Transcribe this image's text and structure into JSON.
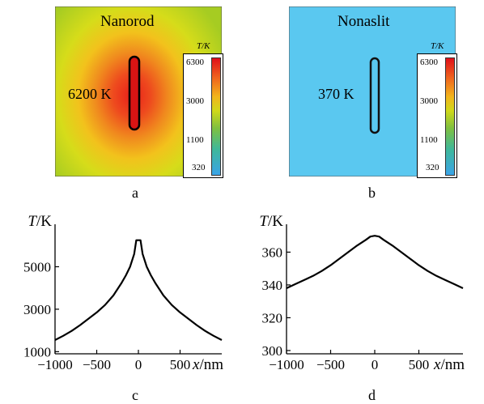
{
  "panel_a": {
    "title": "Nanorod",
    "peak_label": "6200 K",
    "legend_unit": "T/K",
    "legend_ticks": [
      "6300",
      "3000",
      "1100",
      "320"
    ],
    "sub_label": "a",
    "colors": {
      "background": "#b8d81a",
      "hot": "#e01818",
      "orange": "#f08a1e"
    }
  },
  "panel_b": {
    "title": "Nonaslit",
    "peak_label": "370 K",
    "legend_unit": "T/K",
    "legend_ticks": [
      "6300",
      "3000",
      "1100",
      "320"
    ],
    "sub_label": "b",
    "colors": {
      "background": "#5ac8f0"
    }
  },
  "chart_data": [
    {
      "type": "line",
      "panel": "c",
      "ylabel": "T/K",
      "xlabel": "x/nm",
      "xlim": [
        -1000,
        1000
      ],
      "ylim": [
        900,
        7000
      ],
      "xticks": [
        "−1000",
        "−500",
        "0",
        "500"
      ],
      "yticks": [
        "1000",
        "3000",
        "5000"
      ],
      "ytick_values": [
        1000,
        3000,
        5000
      ],
      "xtick_values": [
        -1000,
        -500,
        0,
        500
      ],
      "x": [
        -1000,
        -900,
        -800,
        -700,
        -600,
        -500,
        -400,
        -300,
        -200,
        -150,
        -100,
        -50,
        -25,
        0,
        25,
        50,
        100,
        150,
        200,
        300,
        400,
        500,
        600,
        700,
        800,
        900,
        1000
      ],
      "values": [
        1550,
        1750,
        1980,
        2250,
        2550,
        2850,
        3200,
        3650,
        4250,
        4600,
        5000,
        5600,
        6250,
        6250,
        6250,
        5600,
        5000,
        4600,
        4250,
        3650,
        3200,
        2850,
        2550,
        2250,
        1980,
        1750,
        1550
      ]
    },
    {
      "type": "line",
      "panel": "d",
      "ylabel": "T/K",
      "xlabel": "x/nm",
      "xlim": [
        -1000,
        1000
      ],
      "ylim": [
        298,
        377
      ],
      "xticks": [
        "−1000",
        "−500",
        "0",
        "500"
      ],
      "yticks": [
        "300",
        "320",
        "340",
        "360"
      ],
      "ytick_values": [
        300,
        320,
        340,
        360
      ],
      "xtick_values": [
        -1000,
        -500,
        0,
        500
      ],
      "x": [
        -1000,
        -900,
        -800,
        -700,
        -600,
        -500,
        -400,
        -300,
        -200,
        -100,
        -50,
        0,
        50,
        100,
        200,
        300,
        400,
        500,
        600,
        700,
        800,
        900,
        1000
      ],
      "values": [
        338,
        340.5,
        343,
        345.5,
        348.5,
        352,
        356,
        360,
        364,
        367.5,
        369.5,
        370,
        369.5,
        367.5,
        364,
        360,
        356,
        352,
        348.5,
        345.5,
        343,
        340.5,
        338
      ]
    }
  ]
}
